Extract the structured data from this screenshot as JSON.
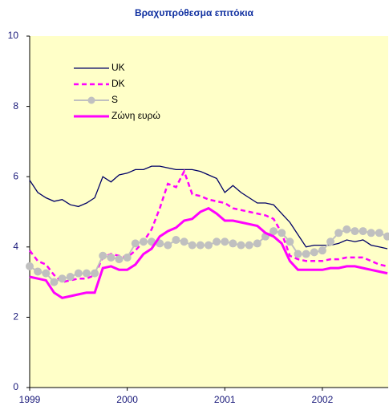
{
  "chart_data": {
    "type": "line",
    "title": "Βραχυπρόθεσμα επιτόκια",
    "ylabel": "%",
    "categories": [
      "1999",
      null,
      null,
      null,
      null,
      null,
      null,
      null,
      null,
      null,
      null,
      null,
      "2000",
      null,
      null,
      null,
      null,
      null,
      null,
      null,
      null,
      null,
      null,
      null,
      "2001",
      null,
      null,
      null,
      null,
      null,
      null,
      null,
      null,
      null,
      null,
      null,
      "2002",
      null,
      null,
      null,
      null,
      null,
      null,
      null,
      null
    ],
    "series": [
      {
        "name": "UK",
        "color": "#000066",
        "linestyle": "solid",
        "values": [
          5.9,
          5.55,
          5.4,
          5.3,
          5.35,
          5.2,
          5.15,
          5.25,
          5.4,
          6.0,
          5.85,
          6.05,
          6.1,
          6.2,
          6.2,
          6.3,
          6.3,
          6.25,
          6.2,
          6.2,
          6.2,
          6.15,
          6.05,
          5.95,
          5.55,
          5.75,
          5.55,
          5.4,
          5.25,
          5.25,
          5.2,
          4.95,
          4.7,
          4.35,
          4.0,
          4.05,
          4.05,
          4.05,
          4.1,
          4.2,
          4.15,
          4.2,
          4.05,
          4.0,
          3.95
        ]
      },
      {
        "name": "DK",
        "color": "#ff00ff",
        "linestyle": "dashed",
        "values": [
          3.9,
          3.6,
          3.5,
          3.2,
          3.0,
          3.05,
          3.1,
          3.1,
          3.2,
          3.7,
          3.8,
          3.75,
          3.7,
          3.9,
          4.15,
          4.5,
          5.1,
          5.8,
          5.7,
          6.15,
          5.5,
          5.45,
          5.35,
          5.3,
          5.25,
          5.1,
          5.05,
          5.0,
          4.95,
          4.9,
          4.8,
          4.4,
          3.75,
          3.65,
          3.6,
          3.6,
          3.6,
          3.65,
          3.65,
          3.7,
          3.7,
          3.7,
          3.6,
          3.5,
          3.45
        ]
      },
      {
        "name": "S",
        "color": "#c0c0c0",
        "linestyle": "solid",
        "marker": "circle",
        "values": [
          3.45,
          3.3,
          3.25,
          3.0,
          3.1,
          3.15,
          3.25,
          3.25,
          3.25,
          3.75,
          3.7,
          3.65,
          3.7,
          4.1,
          4.15,
          4.15,
          4.1,
          4.05,
          4.2,
          4.15,
          4.05,
          4.05,
          4.05,
          4.15,
          4.15,
          4.1,
          4.05,
          4.05,
          4.1,
          4.3,
          4.45,
          4.4,
          4.15,
          3.8,
          3.8,
          3.85,
          3.9,
          4.15,
          4.4,
          4.5,
          4.45,
          4.45,
          4.4,
          4.4,
          4.3
        ]
      },
      {
        "name": "Ζώνη ευρώ",
        "color": "#ff00ff",
        "linestyle": "thick",
        "values": [
          3.15,
          3.1,
          3.05,
          2.7,
          2.55,
          2.6,
          2.65,
          2.7,
          2.7,
          3.4,
          3.45,
          3.35,
          3.35,
          3.5,
          3.8,
          3.95,
          4.3,
          4.45,
          4.55,
          4.75,
          4.8,
          5.0,
          5.1,
          4.95,
          4.75,
          4.75,
          4.7,
          4.65,
          4.6,
          4.4,
          4.3,
          4.1,
          3.6,
          3.35,
          3.35,
          3.35,
          3.35,
          3.4,
          3.4,
          3.45,
          3.45,
          3.4,
          3.35,
          3.3,
          3.25
        ]
      }
    ],
    "ylim": [
      0,
      10
    ],
    "yticks": [
      0,
      2,
      4,
      6,
      8,
      10
    ],
    "grid": false,
    "legend": "upper left",
    "background": "#ffffc8"
  }
}
